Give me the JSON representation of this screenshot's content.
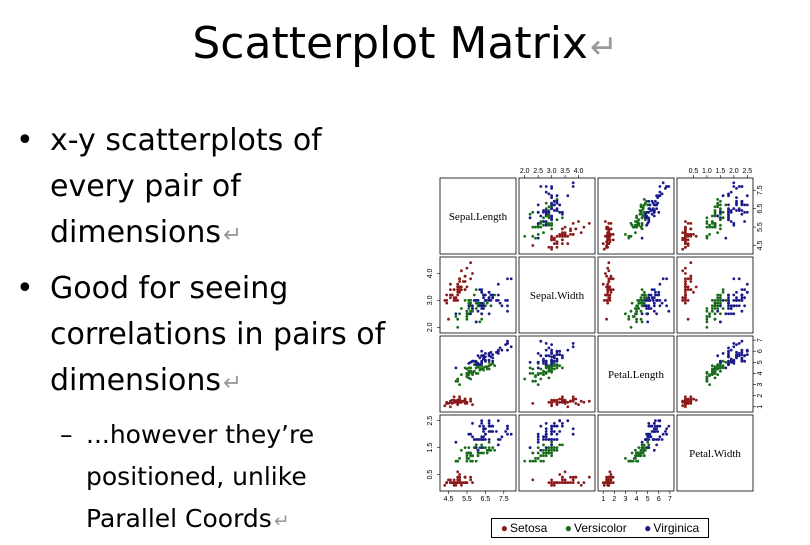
{
  "slide": {
    "title": "Scatterplot Matrix",
    "return_mark": "↵",
    "bullets": [
      {
        "text_lines": [
          "x-y scatterplots of",
          "every pair of",
          "dimensions"
        ]
      },
      {
        "text_lines": [
          "Good for seeing",
          "correlations in pairs of",
          "dimensions"
        ]
      }
    ],
    "sub_bullet": {
      "text_lines": [
        "...however they’re",
        "positioned,  unlike",
        "Parallel Coords"
      ]
    },
    "bullet_glyph": "•",
    "dash_glyph": "–"
  },
  "chart_data": {
    "type": "scatter",
    "variables": [
      "Sepal.Length",
      "Sepal.Width",
      "Petal.Length",
      "Petal.Width"
    ],
    "ranges": {
      "Sepal.Length": [
        4.2,
        8.0
      ],
      "Sepal.Width": [
        1.9,
        4.5
      ],
      "Petal.Length": [
        0.8,
        7.1
      ],
      "Petal.Width": [
        0.0,
        2.6
      ]
    },
    "ticks": {
      "Sepal.Length": [
        "4.5",
        "5.5",
        "6.5",
        "7.5"
      ],
      "Sepal.Width": [
        "2.0",
        "2.5",
        "3.0",
        "3.5",
        "4.0"
      ],
      "Petal.Length": [
        "1",
        "2",
        "3",
        "4",
        "5",
        "6",
        "7"
      ],
      "Petal.Width": [
        "0.5",
        "1.0",
        "1.5",
        "2.0",
        "2.5"
      ]
    },
    "left_ticks": {
      "Sepal.Width": [
        "2.0",
        "3.0",
        "4.0"
      ],
      "Petal.Width": [
        "0.5",
        "1.5",
        "2.5"
      ]
    },
    "legend": {
      "placement": "bottom"
    },
    "series": [
      {
        "name": "Setosa",
        "color": "#8b1a1a",
        "points": [
          [
            5.1,
            3.5,
            1.4,
            0.2
          ],
          [
            4.9,
            3.0,
            1.4,
            0.2
          ],
          [
            4.7,
            3.2,
            1.3,
            0.2
          ],
          [
            4.6,
            3.1,
            1.5,
            0.2
          ],
          [
            5.0,
            3.6,
            1.4,
            0.2
          ],
          [
            5.4,
            3.9,
            1.7,
            0.4
          ],
          [
            4.6,
            3.4,
            1.4,
            0.3
          ],
          [
            5.0,
            3.4,
            1.5,
            0.2
          ],
          [
            4.4,
            2.9,
            1.4,
            0.2
          ],
          [
            4.9,
            3.1,
            1.5,
            0.1
          ],
          [
            5.4,
            3.7,
            1.5,
            0.2
          ],
          [
            4.8,
            3.4,
            1.6,
            0.2
          ],
          [
            4.8,
            3.0,
            1.4,
            0.1
          ],
          [
            4.3,
            3.0,
            1.1,
            0.1
          ],
          [
            5.8,
            4.0,
            1.2,
            0.2
          ],
          [
            5.7,
            4.4,
            1.5,
            0.4
          ],
          [
            5.4,
            3.9,
            1.3,
            0.4
          ],
          [
            5.1,
            3.5,
            1.4,
            0.3
          ],
          [
            5.7,
            3.8,
            1.7,
            0.3
          ],
          [
            5.1,
            3.8,
            1.5,
            0.3
          ],
          [
            5.4,
            3.4,
            1.7,
            0.2
          ],
          [
            5.1,
            3.7,
            1.5,
            0.4
          ],
          [
            4.6,
            3.6,
            1.0,
            0.2
          ],
          [
            5.1,
            3.3,
            1.7,
            0.5
          ],
          [
            4.8,
            3.4,
            1.9,
            0.2
          ],
          [
            5.0,
            3.0,
            1.6,
            0.2
          ],
          [
            5.0,
            3.4,
            1.6,
            0.4
          ],
          [
            5.2,
            3.5,
            1.5,
            0.2
          ],
          [
            5.2,
            3.4,
            1.4,
            0.2
          ],
          [
            4.7,
            3.2,
            1.6,
            0.2
          ],
          [
            4.8,
            3.1,
            1.6,
            0.2
          ],
          [
            5.4,
            3.4,
            1.5,
            0.4
          ],
          [
            5.2,
            4.1,
            1.5,
            0.1
          ],
          [
            5.5,
            4.2,
            1.4,
            0.2
          ],
          [
            4.9,
            3.1,
            1.5,
            0.2
          ],
          [
            5.0,
            3.2,
            1.2,
            0.2
          ],
          [
            5.5,
            3.5,
            1.3,
            0.2
          ],
          [
            4.4,
            3.0,
            1.3,
            0.2
          ],
          [
            5.1,
            3.4,
            1.5,
            0.2
          ],
          [
            5.0,
            3.5,
            1.3,
            0.3
          ],
          [
            4.5,
            2.3,
            1.3,
            0.3
          ],
          [
            4.4,
            3.2,
            1.3,
            0.2
          ],
          [
            5.0,
            3.5,
            1.6,
            0.6
          ],
          [
            5.1,
            3.8,
            1.9,
            0.4
          ],
          [
            4.8,
            3.0,
            1.4,
            0.3
          ],
          [
            5.1,
            3.8,
            1.6,
            0.2
          ],
          [
            4.6,
            3.2,
            1.4,
            0.2
          ],
          [
            5.3,
            3.7,
            1.5,
            0.2
          ],
          [
            5.0,
            3.3,
            1.4,
            0.2
          ]
        ]
      },
      {
        "name": "Versicolor",
        "color": "#1a6b1a",
        "points": [
          [
            7.0,
            3.2,
            4.7,
            1.4
          ],
          [
            6.4,
            3.2,
            4.5,
            1.5
          ],
          [
            6.9,
            3.1,
            4.9,
            1.5
          ],
          [
            5.5,
            2.3,
            4.0,
            1.3
          ],
          [
            6.5,
            2.8,
            4.6,
            1.5
          ],
          [
            5.7,
            2.8,
            4.5,
            1.3
          ],
          [
            6.3,
            3.3,
            4.7,
            1.6
          ],
          [
            4.9,
            2.4,
            3.3,
            1.0
          ],
          [
            6.6,
            2.9,
            4.6,
            1.3
          ],
          [
            5.2,
            2.7,
            3.9,
            1.4
          ],
          [
            5.0,
            2.0,
            3.5,
            1.0
          ],
          [
            5.9,
            3.0,
            4.2,
            1.5
          ],
          [
            6.0,
            2.2,
            4.0,
            1.0
          ],
          [
            6.1,
            2.9,
            4.7,
            1.4
          ],
          [
            5.6,
            2.9,
            3.6,
            1.3
          ],
          [
            6.7,
            3.1,
            4.4,
            1.4
          ],
          [
            5.6,
            3.0,
            4.5,
            1.5
          ],
          [
            5.8,
            2.7,
            4.1,
            1.0
          ],
          [
            6.2,
            2.2,
            4.5,
            1.5
          ],
          [
            5.6,
            2.5,
            3.9,
            1.1
          ],
          [
            5.9,
            3.2,
            4.8,
            1.8
          ],
          [
            6.1,
            2.8,
            4.0,
            1.3
          ],
          [
            6.3,
            2.5,
            4.9,
            1.5
          ],
          [
            6.1,
            2.8,
            4.7,
            1.2
          ],
          [
            6.4,
            2.9,
            4.3,
            1.3
          ],
          [
            6.6,
            3.0,
            4.4,
            1.4
          ],
          [
            6.8,
            2.8,
            4.8,
            1.4
          ],
          [
            6.7,
            3.0,
            5.0,
            1.7
          ],
          [
            6.0,
            2.9,
            4.5,
            1.5
          ],
          [
            5.7,
            2.6,
            3.5,
            1.0
          ],
          [
            5.5,
            2.4,
            3.8,
            1.1
          ],
          [
            5.5,
            2.4,
            3.7,
            1.0
          ],
          [
            5.8,
            2.7,
            3.9,
            1.2
          ],
          [
            6.0,
            2.7,
            5.1,
            1.6
          ],
          [
            5.4,
            3.0,
            4.5,
            1.5
          ],
          [
            6.0,
            3.4,
            4.5,
            1.6
          ],
          [
            6.7,
            3.1,
            4.7,
            1.5
          ],
          [
            6.3,
            2.3,
            4.4,
            1.3
          ],
          [
            5.6,
            3.0,
            4.1,
            1.3
          ],
          [
            5.5,
            2.5,
            4.0,
            1.3
          ],
          [
            5.5,
            2.6,
            4.4,
            1.2
          ],
          [
            6.1,
            3.0,
            4.6,
            1.4
          ],
          [
            5.8,
            2.6,
            4.0,
            1.2
          ],
          [
            5.0,
            2.3,
            3.3,
            1.0
          ],
          [
            5.6,
            2.7,
            4.2,
            1.3
          ],
          [
            5.7,
            3.0,
            4.2,
            1.2
          ],
          [
            5.7,
            2.9,
            4.2,
            1.3
          ],
          [
            6.2,
            2.9,
            4.3,
            1.3
          ],
          [
            5.1,
            2.5,
            3.0,
            1.1
          ],
          [
            5.7,
            2.8,
            4.1,
            1.3
          ]
        ]
      },
      {
        "name": "Virginica",
        "color": "#1a1a8b",
        "points": [
          [
            6.3,
            3.3,
            6.0,
            2.5
          ],
          [
            5.8,
            2.7,
            5.1,
            1.9
          ],
          [
            7.1,
            3.0,
            5.9,
            2.1
          ],
          [
            6.3,
            2.9,
            5.6,
            1.8
          ],
          [
            6.5,
            3.0,
            5.8,
            2.2
          ],
          [
            7.6,
            3.0,
            6.6,
            2.1
          ],
          [
            4.9,
            2.5,
            4.5,
            1.7
          ],
          [
            7.3,
            2.9,
            6.3,
            1.8
          ],
          [
            6.7,
            2.5,
            5.8,
            1.8
          ],
          [
            7.2,
            3.6,
            6.1,
            2.5
          ],
          [
            6.5,
            3.2,
            5.1,
            2.0
          ],
          [
            6.4,
            2.7,
            5.3,
            1.9
          ],
          [
            6.8,
            3.0,
            5.5,
            2.1
          ],
          [
            5.7,
            2.5,
            5.0,
            2.0
          ],
          [
            5.8,
            2.8,
            5.1,
            2.4
          ],
          [
            6.4,
            3.2,
            5.3,
            2.3
          ],
          [
            6.5,
            3.0,
            5.5,
            1.8
          ],
          [
            7.7,
            3.8,
            6.7,
            2.2
          ],
          [
            7.7,
            2.6,
            6.9,
            2.3
          ],
          [
            6.0,
            2.2,
            5.0,
            1.5
          ],
          [
            6.9,
            3.2,
            5.7,
            2.3
          ],
          [
            5.6,
            2.8,
            4.9,
            2.0
          ],
          [
            7.7,
            2.8,
            6.7,
            2.0
          ],
          [
            6.3,
            2.7,
            4.9,
            1.8
          ],
          [
            6.7,
            3.3,
            5.7,
            2.1
          ],
          [
            7.2,
            3.2,
            6.0,
            1.8
          ],
          [
            6.2,
            2.8,
            4.8,
            1.8
          ],
          [
            6.1,
            3.0,
            4.9,
            1.8
          ],
          [
            6.4,
            2.8,
            5.6,
            2.1
          ],
          [
            7.2,
            3.0,
            5.8,
            1.6
          ],
          [
            7.4,
            2.8,
            6.1,
            1.9
          ],
          [
            7.9,
            3.8,
            6.4,
            2.0
          ],
          [
            6.4,
            2.8,
            5.6,
            2.2
          ],
          [
            6.3,
            2.8,
            5.1,
            1.5
          ],
          [
            6.1,
            2.6,
            5.6,
            1.4
          ],
          [
            7.7,
            3.0,
            6.1,
            2.3
          ],
          [
            6.3,
            3.4,
            5.6,
            2.4
          ],
          [
            6.4,
            3.1,
            5.5,
            1.8
          ],
          [
            6.0,
            3.0,
            4.8,
            1.8
          ],
          [
            6.9,
            3.1,
            5.4,
            2.1
          ],
          [
            6.7,
            3.1,
            5.6,
            2.4
          ],
          [
            6.9,
            3.1,
            5.1,
            2.3
          ],
          [
            6.8,
            3.2,
            5.9,
            2.3
          ],
          [
            6.7,
            3.3,
            5.7,
            2.5
          ],
          [
            6.7,
            3.0,
            5.2,
            2.3
          ],
          [
            6.3,
            2.5,
            5.0,
            1.9
          ],
          [
            6.5,
            3.0,
            5.2,
            2.0
          ],
          [
            6.2,
            3.4,
            5.4,
            2.3
          ],
          [
            5.9,
            3.0,
            5.1,
            1.8
          ]
        ]
      }
    ]
  }
}
